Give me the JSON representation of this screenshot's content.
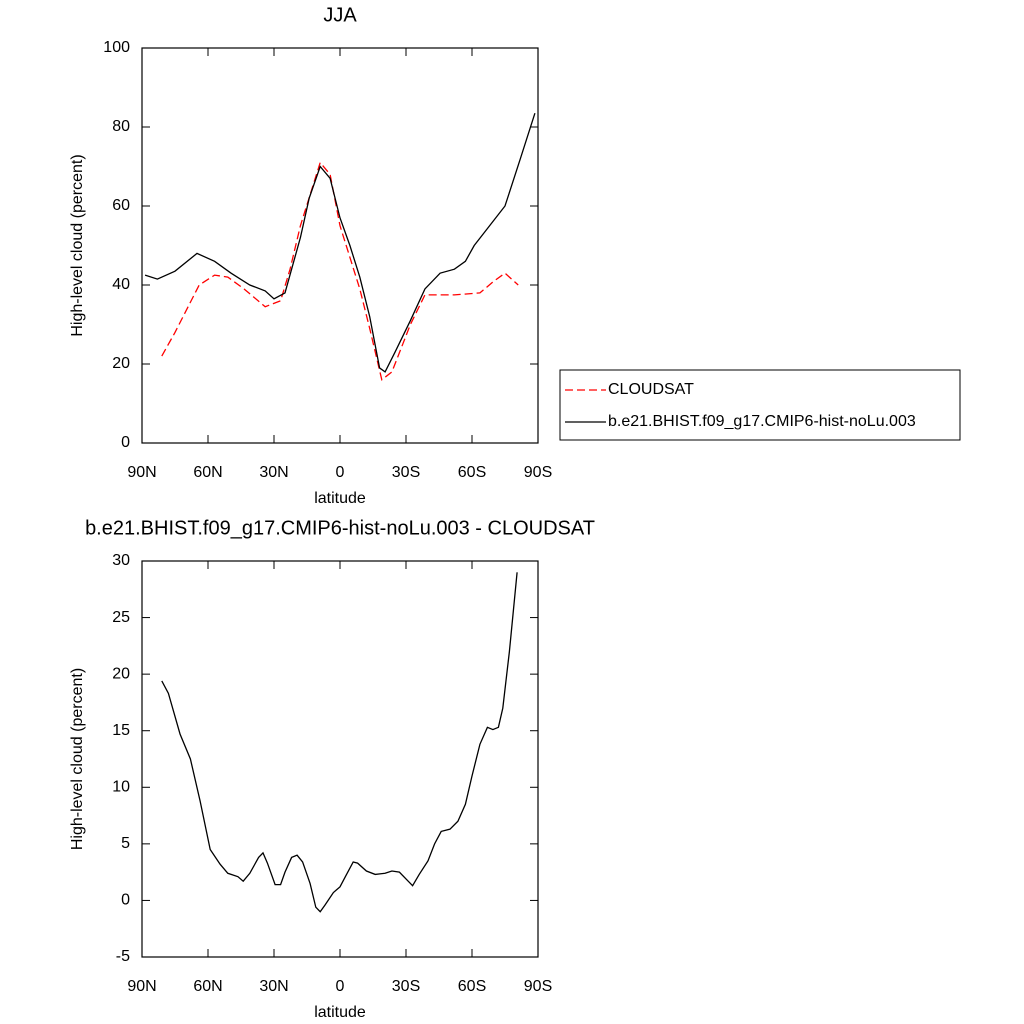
{
  "chart_data": [
    {
      "type": "line",
      "title": "JJA",
      "xlabel": "latitude",
      "ylabel": "High-level cloud (percent)",
      "xlim": [
        90,
        -90
      ],
      "xticks": [
        {
          "value": 90,
          "label": "90N"
        },
        {
          "value": 60,
          "label": "60N"
        },
        {
          "value": 30,
          "label": "30N"
        },
        0,
        {
          "value": -30,
          "label": "30S"
        },
        {
          "value": -60,
          "label": "60S"
        },
        {
          "value": -90,
          "label": "90S"
        }
      ],
      "ylim": [
        0,
        100
      ],
      "yticks": [
        0,
        20,
        40,
        60,
        80,
        100
      ],
      "legend": "right",
      "series": [
        {
          "name": "CLOUDSAT",
          "color": "#ff0000",
          "line_style": "dashed",
          "x": [
            81,
            75,
            64,
            57,
            51,
            43.6,
            34,
            27,
            22.7,
            18,
            9,
            4.5,
            0,
            -4.5,
            -9,
            -13.5,
            -19,
            -23.6,
            -32,
            -38.6,
            -52,
            -63.6,
            -70,
            -75,
            -81
          ],
          "values": [
            22,
            28,
            40,
            42.5,
            42,
            39,
            34.5,
            36,
            44,
            55,
            71,
            68,
            55,
            47,
            39,
            29,
            16,
            18,
            30,
            37.5,
            37.5,
            38,
            41,
            43,
            40
          ]
        },
        {
          "name": "b.e21.BHIST.f09_g17.CMIP6-hist-noLu.003",
          "color": "#000000",
          "line_style": "solid",
          "x": [
            88.6,
            83,
            75,
            65,
            57,
            49.5,
            41,
            34,
            30,
            25,
            18,
            14,
            9,
            4.5,
            0,
            -4.5,
            -9,
            -13.5,
            -18,
            -20.5,
            -25,
            -32,
            -38.6,
            -45.5,
            -52,
            -57,
            -61,
            -68,
            -75,
            -82,
            -88.6
          ],
          "values": [
            42.5,
            41.5,
            43.5,
            48,
            46,
            43,
            40,
            38.5,
            36.5,
            38,
            52,
            62,
            70,
            67,
            57,
            50,
            42,
            32,
            19,
            18,
            23,
            31,
            39,
            43,
            44,
            46,
            50,
            55,
            60,
            72,
            83.5
          ]
        }
      ]
    },
    {
      "type": "line",
      "title": "b.e21.BHIST.f09_g17.CMIP6-hist-noLu.003 - CLOUDSAT",
      "xlabel": "latitude",
      "ylabel": "High-level cloud (percent)",
      "xlim": [
        90,
        -90
      ],
      "xticks": [
        {
          "value": 90,
          "label": "90N"
        },
        {
          "value": 60,
          "label": "60N"
        },
        {
          "value": 30,
          "label": "30N"
        },
        0,
        {
          "value": -30,
          "label": "30S"
        },
        {
          "value": -60,
          "label": "60S"
        },
        {
          "value": -90,
          "label": "90S"
        }
      ],
      "ylim": [
        -5,
        30
      ],
      "yticks": [
        -5,
        0,
        5,
        10,
        15,
        20,
        25,
        30
      ],
      "series": [
        {
          "color": "#000000",
          "line_style": "solid",
          "x": [
            81,
            78,
            72.7,
            68,
            63.6,
            59,
            54.5,
            51,
            46.4,
            44,
            41,
            37,
            35,
            33,
            29.5,
            27,
            25,
            22,
            19.5,
            17,
            13.6,
            11,
            9,
            6.8,
            3,
            0,
            -2.7,
            -6,
            -8,
            -12,
            -16,
            -20.5,
            -23.6,
            -27,
            -30.5,
            -33,
            -36,
            -40,
            -43,
            -46,
            -50,
            -53.6,
            -57,
            -60,
            -63.6,
            -67,
            -69.5,
            -72,
            -74,
            -77,
            -80.5
          ],
          "values": [
            19.4,
            18.3,
            14.7,
            12.5,
            8.8,
            4.5,
            3.2,
            2.4,
            2.1,
            1.7,
            2.4,
            3.8,
            4.2,
            3.3,
            1.4,
            1.4,
            2.5,
            3.8,
            4.0,
            3.4,
            1.5,
            -0.6,
            -1.0,
            -0.4,
            0.7,
            1.2,
            2.2,
            3.4,
            3.3,
            2.6,
            2.3,
            2.4,
            2.6,
            2.5,
            1.8,
            1.3,
            2.3,
            3.5,
            5,
            6.1,
            6.3,
            7.0,
            8.5,
            11,
            13.8,
            15.3,
            15.1,
            15.3,
            17,
            22,
            29
          ]
        }
      ]
    }
  ]
}
